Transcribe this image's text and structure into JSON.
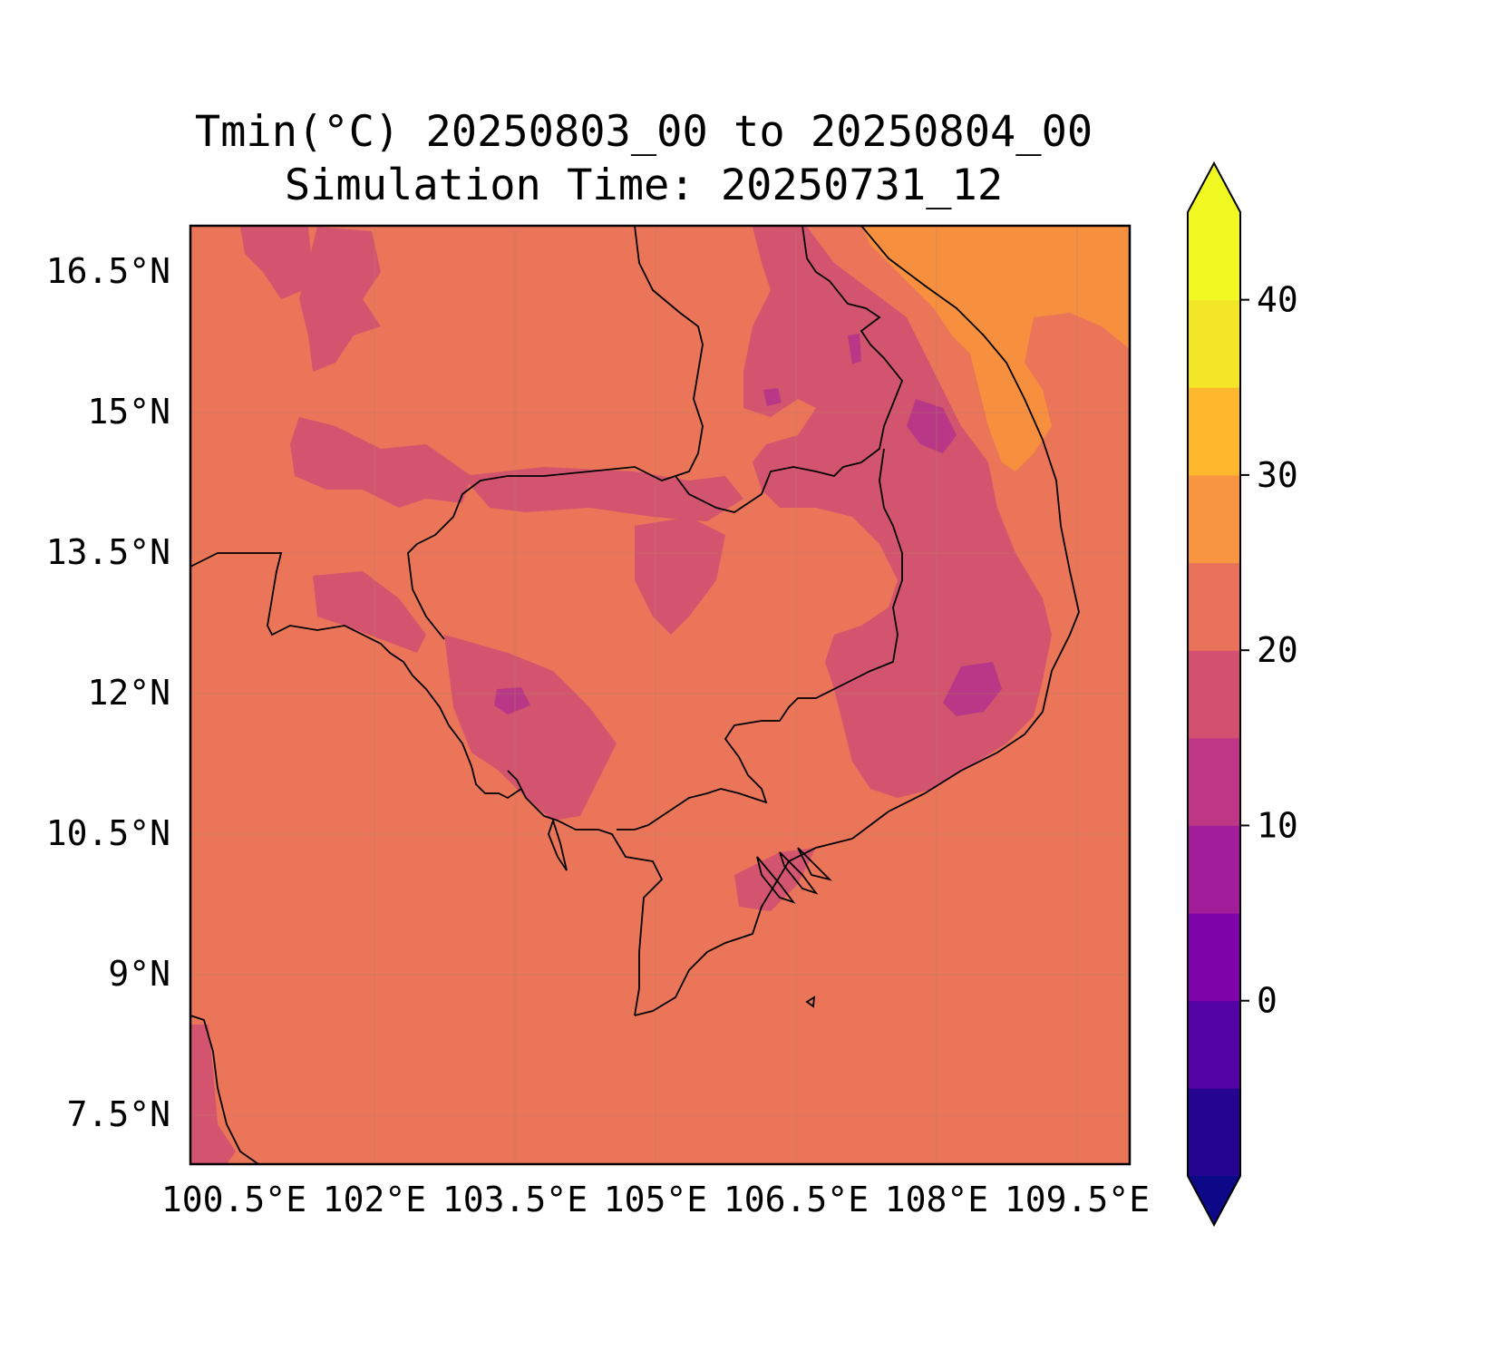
{
  "title": {
    "line1": "Tmin(°C) 20250803_00 to 20250804_00",
    "line2": "Simulation Time: 20250731_12"
  },
  "map": {
    "x_ticks": [
      "100.5°E",
      "102°E",
      "103.5°E",
      "105°E",
      "106.5°E",
      "108°E",
      "109.5°E"
    ],
    "y_ticks": [
      "16.5°N",
      "15°N",
      "13.5°N",
      "12°N",
      "10.5°N",
      "9°N",
      "7.5°N"
    ],
    "colors": {
      "background_field": "#ea7559",
      "cooler_field": "#d2546f",
      "coolest_field": "#b83787",
      "warm_field": "#f6903f"
    }
  },
  "colorbar": {
    "tick_labels": [
      "0",
      "10",
      "20",
      "30",
      "40"
    ],
    "levels": [
      -5,
      0,
      5,
      10,
      15,
      20,
      25,
      30,
      35,
      40
    ],
    "colors": [
      "#0d0887",
      "#23058f",
      "#5302a3",
      "#7e03a8",
      "#a21d9a",
      "#bd3786",
      "#d45070",
      "#e9735a",
      "#f89540",
      "#fdb72d",
      "#f3e626",
      "#f0f921"
    ]
  }
}
